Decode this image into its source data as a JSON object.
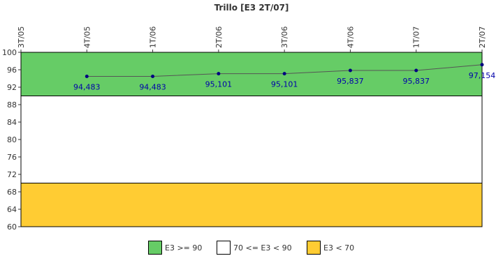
{
  "chart_data": {
    "type": "line",
    "title": "Trillo [E3 2T/07]",
    "categories": [
      "3T/05",
      "4T/05",
      "1T/06",
      "2T/06",
      "3T/06",
      "4T/06",
      "1T/07",
      "2T/07"
    ],
    "series": [
      {
        "values": [
          null,
          94.483,
          94.483,
          95.101,
          95.101,
          95.837,
          95.837,
          97.154
        ],
        "labels": [
          null,
          "94,483",
          "94,483",
          "95,101",
          "95,101",
          "95,837",
          "95,837",
          "97,154"
        ],
        "color": "#000080"
      }
    ],
    "ylim": [
      60,
      100
    ],
    "yticks": [
      60,
      64,
      68,
      72,
      76,
      80,
      84,
      88,
      92,
      96,
      100
    ],
    "bands": [
      {
        "from": 90,
        "to": 100,
        "color": "#66cc66",
        "label": "E3 >= 90"
      },
      {
        "from": 70,
        "to": 90,
        "color": "#ffffff",
        "label": "70 <= E3 < 90"
      },
      {
        "from": 60,
        "to": 70,
        "color": "#ffcc33",
        "label": "E3 < 70"
      }
    ],
    "legend_position": "bottom",
    "grid": false
  }
}
